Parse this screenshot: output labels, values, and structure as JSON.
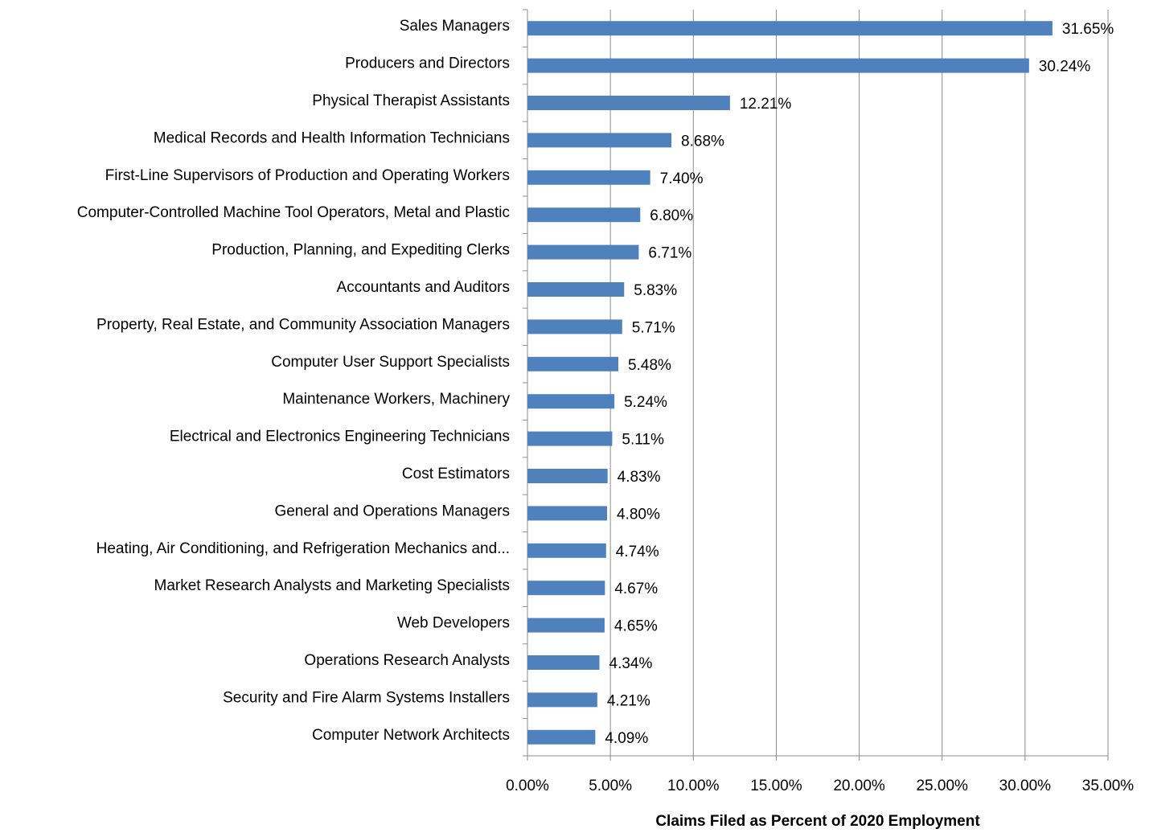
{
  "chart_data": {
    "type": "barh",
    "xlabel": "Claims Filed as Percent of 2020 Employment",
    "categories": [
      "Sales Managers",
      "Producers and Directors",
      "Physical Therapist Assistants",
      "Medical Records and Health Information Technicians",
      "First-Line Supervisors of Production and Operating Workers",
      "Computer-Controlled Machine Tool Operators, Metal and Plastic",
      "Production, Planning, and Expediting Clerks",
      "Accountants and Auditors",
      "Property, Real Estate, and Community Association Managers",
      "Computer User Support Specialists",
      "Maintenance Workers, Machinery",
      "Electrical and Electronics Engineering Technicians",
      "Cost Estimators",
      "General and Operations Managers",
      "Heating, Air Conditioning, and Refrigeration Mechanics and...",
      "Market Research Analysts and Marketing Specialists",
      "Web Developers",
      "Operations Research Analysts",
      "Security and Fire Alarm Systems Installers",
      "Computer Network Architects"
    ],
    "values": [
      31.65,
      30.24,
      12.21,
      8.68,
      7.4,
      6.8,
      6.71,
      5.83,
      5.71,
      5.48,
      5.24,
      5.11,
      4.83,
      4.8,
      4.74,
      4.67,
      4.65,
      4.34,
      4.21,
      4.09
    ],
    "value_labels": [
      "31.65%",
      "30.24%",
      "12.21%",
      "8.68%",
      "7.40%",
      "6.80%",
      "6.71%",
      "5.83%",
      "5.71%",
      "5.48%",
      "5.24%",
      "5.11%",
      "4.83%",
      "4.80%",
      "4.74%",
      "4.67%",
      "4.65%",
      "4.34%",
      "4.21%",
      "4.09%"
    ],
    "color": "#4f81bd",
    "xlim": [
      0,
      35
    ],
    "xticks": [
      {
        "value": 0,
        "label": "0.00%"
      },
      {
        "value": 5,
        "label": "5.00%"
      },
      {
        "value": 10,
        "label": "10.00%"
      },
      {
        "value": 15,
        "label": "15.00%"
      },
      {
        "value": 20,
        "label": "20.00%"
      },
      {
        "value": 25,
        "label": "25.00%"
      },
      {
        "value": 30,
        "label": "30.00%"
      },
      {
        "value": 35,
        "label": "35.00%"
      }
    ],
    "grid": true
  }
}
